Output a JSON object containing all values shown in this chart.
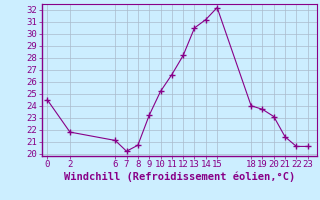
{
  "x": [
    0,
    2,
    6,
    7,
    8,
    9,
    10,
    11,
    12,
    13,
    14,
    15,
    18,
    19,
    20,
    21,
    22,
    23
  ],
  "y": [
    24.5,
    21.8,
    21.1,
    20.2,
    20.7,
    23.2,
    25.2,
    26.6,
    28.2,
    30.5,
    31.2,
    32.2,
    24.0,
    23.7,
    23.1,
    21.4,
    20.6,
    20.6
  ],
  "xticks": [
    0,
    2,
    6,
    7,
    8,
    9,
    10,
    11,
    12,
    13,
    14,
    15,
    18,
    19,
    20,
    21,
    22,
    23
  ],
  "yticks": [
    20,
    21,
    22,
    23,
    24,
    25,
    26,
    27,
    28,
    29,
    30,
    31,
    32
  ],
  "ylim": [
    19.8,
    32.5
  ],
  "xlim": [
    -0.5,
    23.8
  ],
  "xlabel": "Windchill (Refroidissement éolien,°C)",
  "line_color": "#880088",
  "marker": "+",
  "bg_color": "#cceeff",
  "grid_color": "#aabbcc",
  "tick_fontsize": 6.5,
  "xlabel_fontsize": 7.5,
  "spine_color": "#880088"
}
